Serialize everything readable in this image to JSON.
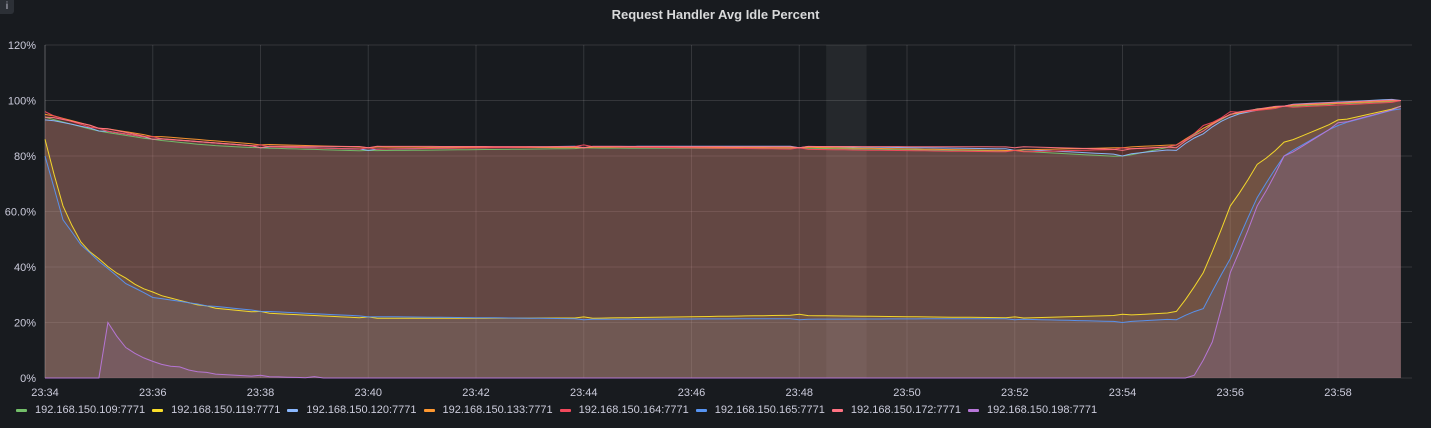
{
  "panel": {
    "title": "Request Handler Avg Idle Percent",
    "info_icon": "i"
  },
  "chart_data": {
    "type": "area",
    "title": "Request Handler Avg Idle Percent",
    "x_ticks": [
      "23:34",
      "23:36",
      "23:38",
      "23:40",
      "23:42",
      "23:44",
      "23:46",
      "23:48",
      "23:50",
      "23:52",
      "23:54",
      "23:56",
      "23:58"
    ],
    "x_range": [
      "23:34",
      "23:59:20"
    ],
    "y_ticks": [
      "0%",
      "20%",
      "40%",
      "60.0%",
      "80%",
      "100%",
      "120%"
    ],
    "ylim": [
      0,
      120
    ],
    "grid": true,
    "legend_position": "bottom-left",
    "highlight_region": [
      "23:48:30",
      "23:49:15"
    ],
    "series": [
      {
        "name": "192.168.150.109:7771",
        "color": "#73bf69",
        "x": [
          "23:34",
          "23:35",
          "23:36",
          "23:37",
          "23:38",
          "23:40",
          "23:44",
          "23:48",
          "23:52",
          "23:54",
          "23:55",
          "23:55:30",
          "23:56",
          "23:56:30",
          "23:57",
          "23:58",
          "23:59:10"
        ],
        "values": [
          94,
          89,
          86,
          84,
          83,
          82,
          83,
          83,
          82,
          80,
          84,
          90,
          95,
          97,
          98,
          99,
          100
        ]
      },
      {
        "name": "192.168.150.119:7771",
        "color": "#fade2a",
        "x": [
          "23:34",
          "23:34:20",
          "23:34:40",
          "23:35",
          "23:35:30",
          "23:36",
          "23:37",
          "23:38",
          "23:40",
          "23:44",
          "23:48",
          "23:52",
          "23:54",
          "23:55",
          "23:55:30",
          "23:56",
          "23:56:30",
          "23:57",
          "23:58",
          "23:59:10"
        ],
        "values": [
          86,
          62,
          49,
          43,
          36,
          31,
          26,
          24,
          22,
          22,
          23,
          22,
          23,
          24,
          38,
          62,
          77,
          85,
          93,
          98
        ]
      },
      {
        "name": "192.168.150.120:7771",
        "color": "#8ab8ff",
        "x": [
          "23:34",
          "23:35",
          "23:36",
          "23:38",
          "23:40",
          "23:44",
          "23:48",
          "23:52",
          "23:54",
          "23:55",
          "23:55:30",
          "23:56",
          "23:57",
          "23:59:10"
        ],
        "values": [
          93,
          89,
          86,
          83,
          82,
          83,
          83,
          82,
          80,
          82,
          88,
          94,
          98,
          100
        ]
      },
      {
        "name": "192.168.150.133:7771",
        "color": "#ff9830",
        "x": [
          "23:34",
          "23:35",
          "23:36",
          "23:38",
          "23:40",
          "23:44",
          "23:48",
          "23:52",
          "23:54",
          "23:55",
          "23:55:30",
          "23:56",
          "23:57",
          "23:59:10"
        ],
        "values": [
          95,
          90,
          87,
          84,
          83,
          83,
          83,
          82,
          83,
          84,
          90,
          95,
          98,
          100
        ]
      },
      {
        "name": "192.168.150.164:7771",
        "color": "#f2495c",
        "x": [
          "23:34",
          "23:35",
          "23:36",
          "23:38",
          "23:40",
          "23:44",
          "23:48",
          "23:52",
          "23:54",
          "23:55",
          "23:55:30",
          "23:56",
          "23:57",
          "23:59:10"
        ],
        "values": [
          96,
          90,
          87,
          84,
          83,
          84,
          83,
          82,
          83,
          84,
          91,
          96,
          98,
          100
        ]
      },
      {
        "name": "192.168.150.165:7771",
        "color": "#5794f2",
        "x": [
          "23:34",
          "23:34:20",
          "23:34:40",
          "23:35",
          "23:35:30",
          "23:36",
          "23:37",
          "23:38",
          "23:40",
          "23:44",
          "23:48",
          "23:52",
          "23:54",
          "23:55",
          "23:55:30",
          "23:56",
          "23:56:30",
          "23:57",
          "23:58",
          "23:59:10"
        ],
        "values": [
          80,
          57,
          48,
          42,
          34,
          29,
          26,
          24,
          22,
          21,
          21,
          21,
          20,
          21,
          25,
          43,
          65,
          80,
          91,
          97
        ]
      },
      {
        "name": "192.168.150.172:7771",
        "color": "#ff7383",
        "x": [
          "23:34",
          "23:35",
          "23:36",
          "23:38",
          "23:40",
          "23:44",
          "23:48",
          "23:52",
          "23:54",
          "23:55",
          "23:55:30",
          "23:56",
          "23:57",
          "23:59:10"
        ],
        "values": [
          94,
          90,
          86,
          83,
          83,
          83,
          83,
          83,
          82,
          83,
          89,
          95,
          98,
          100
        ]
      },
      {
        "name": "192.168.150.198:7771",
        "color": "#b877d9",
        "x": [
          "23:34",
          "23:35",
          "23:35:10",
          "23:35:30",
          "23:36",
          "23:36:30",
          "23:37",
          "23:38",
          "23:39",
          "23:40",
          "23:55",
          "23:55:20",
          "23:55:40",
          "23:56",
          "23:56:30",
          "23:57",
          "23:58",
          "23:59:10"
        ],
        "values": [
          0,
          0,
          20,
          11,
          6,
          4,
          2,
          1,
          0.5,
          0,
          0,
          1,
          13,
          38,
          62,
          80,
          92,
          98
        ]
      }
    ]
  }
}
